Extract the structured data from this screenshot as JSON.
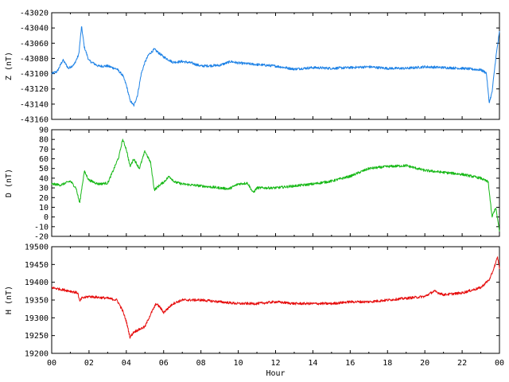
{
  "chart_data": [
    {
      "type": "line",
      "ylabel": "Z (nT)",
      "ylim": [
        -43160,
        -43020
      ],
      "yticks": [
        -43020,
        -43040,
        -43060,
        -43080,
        -43100,
        -43120,
        -43140,
        -43160
      ],
      "xlim": [
        0,
        24
      ],
      "color": "#1e82e6",
      "series": [
        {
          "x": [
            0,
            0.3,
            0.6,
            0.9,
            1.2,
            1.45,
            1.6,
            1.75,
            2.0,
            2.5,
            3.0,
            3.5,
            3.8,
            4.0,
            4.2,
            4.4,
            4.6,
            4.8,
            5.0,
            5.2,
            5.5,
            6.0,
            6.5,
            7.0,
            7.5,
            8.0,
            9.0,
            9.6,
            10.0,
            11.0,
            12.0,
            13.0,
            14.0,
            15.0,
            16.0,
            17.0,
            18.0,
            19.0,
            20.0,
            21.0,
            22.0,
            23.0,
            23.3,
            23.45,
            23.6,
            23.8,
            24.0
          ],
          "values": [
            -43100,
            -43097,
            -43082,
            -43093,
            -43088,
            -43075,
            -43038,
            -43065,
            -43083,
            -43090,
            -43090,
            -43094,
            -43102,
            -43115,
            -43135,
            -43142,
            -43128,
            -43100,
            -43085,
            -43075,
            -43068,
            -43078,
            -43085,
            -43084,
            -43086,
            -43090,
            -43089,
            -43084,
            -43086,
            -43088,
            -43090,
            -43094,
            -43092,
            -43093,
            -43092,
            -43091,
            -43093,
            -43093,
            -43091,
            -43092,
            -43093,
            -43095,
            -43099,
            -43138,
            -43125,
            -43080,
            -43045
          ]
        }
      ]
    },
    {
      "type": "line",
      "ylabel": "D (nT)",
      "ylim": [
        -20,
        90
      ],
      "yticks": [
        90,
        80,
        70,
        60,
        50,
        40,
        30,
        20,
        10,
        0,
        -10,
        -20
      ],
      "xlim": [
        0,
        24
      ],
      "color": "#16b816",
      "series": [
        {
          "x": [
            0,
            0.5,
            1.0,
            1.3,
            1.5,
            1.6,
            1.75,
            2.0,
            2.5,
            3.0,
            3.3,
            3.6,
            3.8,
            4.0,
            4.2,
            4.4,
            4.7,
            5.0,
            5.3,
            5.5,
            5.8,
            6.0,
            6.3,
            6.6,
            7.0,
            8.0,
            9.0,
            9.5,
            10.0,
            10.5,
            10.8,
            11.0,
            12.0,
            13.0,
            14.0,
            15.0,
            16.0,
            17.0,
            18.0,
            19.0,
            20.0,
            21.0,
            22.0,
            23.0,
            23.4,
            23.6,
            23.8,
            24.0
          ],
          "values": [
            34,
            33,
            37,
            30,
            14,
            28,
            47,
            38,
            34,
            35,
            48,
            62,
            80,
            70,
            52,
            60,
            50,
            68,
            56,
            28,
            33,
            36,
            42,
            36,
            34,
            32,
            30,
            29,
            34,
            35,
            25,
            30,
            30,
            32,
            34,
            37,
            42,
            50,
            52,
            53,
            48,
            46,
            44,
            40,
            36,
            0,
            10,
            -15
          ]
        }
      ]
    },
    {
      "type": "line",
      "ylabel": "H (nT)",
      "ylim": [
        19200,
        19500
      ],
      "yticks": [
        19500,
        19450,
        19400,
        19350,
        19300,
        19250,
        19200
      ],
      "xlim": [
        0,
        24
      ],
      "xticks": [
        "00",
        "02",
        "04",
        "06",
        "08",
        "10",
        "12",
        "14",
        "16",
        "18",
        "20",
        "22",
        "00"
      ],
      "xlabel": "Hour",
      "color": "#e60d0d",
      "series": [
        {
          "x": [
            0,
            0.5,
            1.0,
            1.4,
            1.5,
            1.6,
            2.0,
            3.0,
            3.5,
            3.8,
            4.0,
            4.2,
            4.4,
            4.6,
            5.0,
            5.3,
            5.6,
            5.8,
            6.0,
            6.5,
            7.0,
            8.0,
            9.0,
            10.0,
            11.0,
            12.0,
            13.0,
            14.0,
            15.0,
            16.0,
            17.0,
            18.0,
            19.0,
            20.0,
            20.5,
            21.0,
            22.0,
            23.0,
            23.5,
            23.9,
            24.0
          ],
          "values": [
            19385,
            19380,
            19375,
            19370,
            19345,
            19355,
            19360,
            19355,
            19350,
            19320,
            19290,
            19245,
            19260,
            19265,
            19275,
            19310,
            19340,
            19330,
            19315,
            19340,
            19350,
            19350,
            19345,
            19340,
            19340,
            19345,
            19340,
            19340,
            19340,
            19345,
            19345,
            19350,
            19355,
            19360,
            19375,
            19365,
            19370,
            19385,
            19410,
            19470,
            19440
          ]
        }
      ]
    }
  ]
}
